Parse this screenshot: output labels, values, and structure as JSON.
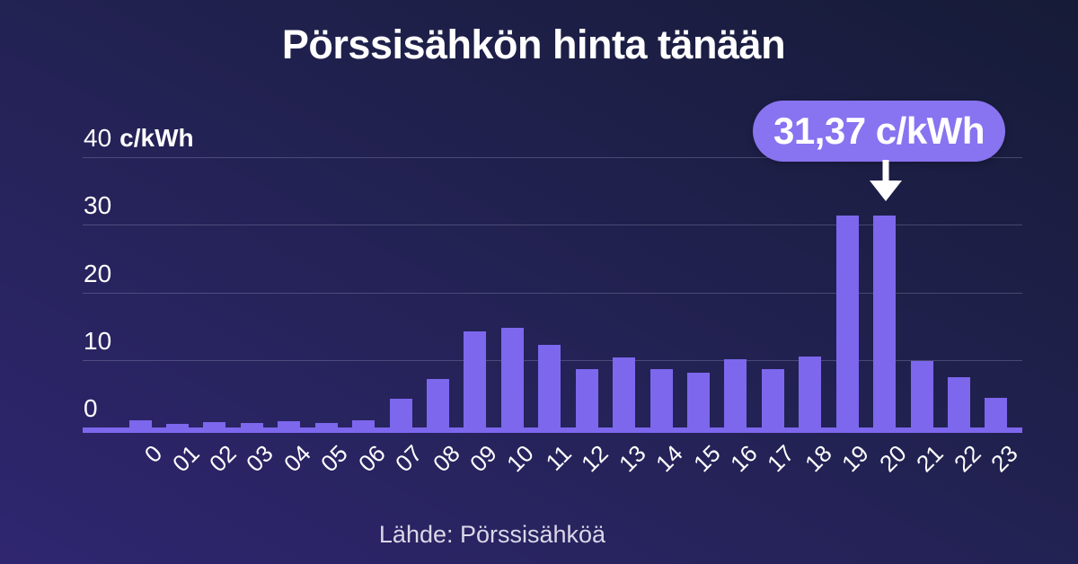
{
  "title": "Pörssisähkön hinta tänään",
  "source": "Lähde: Pörssisähköä",
  "annotation": {
    "label": "31,37 c/kWh",
    "points_to_category": "20"
  },
  "y_axis": {
    "unit_label": "c/kWh",
    "ticks": [
      0,
      10,
      20,
      30,
      40
    ]
  },
  "colors": {
    "background_from": "#2f2670",
    "background_to": "#161b37",
    "bar": "#7d67ed",
    "badge": "#8873f0",
    "axis_line": "#7d67ed",
    "gridline": "rgba(178,178,216,0.28)",
    "text": "#ffffff",
    "source_text": "#dad7e9"
  },
  "chart_data": {
    "type": "bar",
    "title": "Pörssisähkön hinta tänään",
    "categories": [
      "0",
      "01",
      "02",
      "03",
      "04",
      "05",
      "06",
      "07",
      "08",
      "09",
      "10",
      "11",
      "12",
      "13",
      "14",
      "15",
      "16",
      "17",
      "18",
      "19",
      "20",
      "21",
      "22",
      "23"
    ],
    "values": [
      1.0,
      0.5,
      0.8,
      0.7,
      0.9,
      0.6,
      1.0,
      4.2,
      7.2,
      14.2,
      14.7,
      12.2,
      8.7,
      10.4,
      8.7,
      8.1,
      10.1,
      8.6,
      10.5,
      31.3,
      31.37,
      9.9,
      7.4,
      4.4
    ],
    "xlabel": "",
    "ylabel": "c/kWh",
    "ylim": [
      0,
      40
    ],
    "yticks": [
      0,
      10,
      20,
      30,
      40
    ],
    "grid": "horizontal",
    "legend": "none",
    "annotated_bar": {
      "category": "20",
      "value": 31.37,
      "label": "31,37 c/kWh"
    }
  }
}
